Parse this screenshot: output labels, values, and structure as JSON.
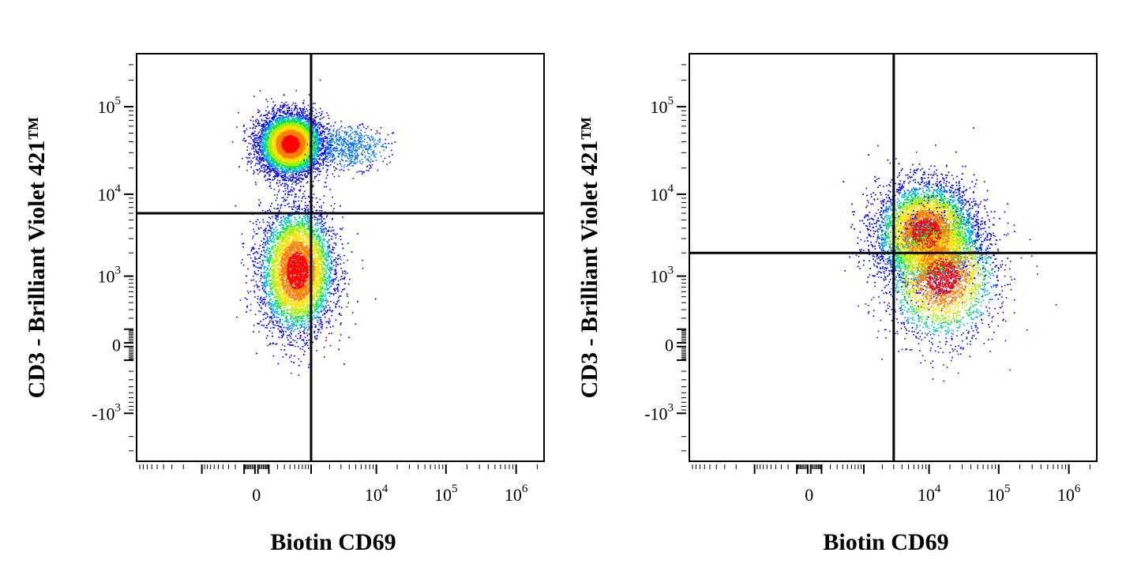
{
  "chart_data": [
    {
      "type": "scatter",
      "subtype": "flow-cytometry-density-dot-plot",
      "title": "",
      "xlabel": "Biotin CD69",
      "ylabel": "CD3 - Brilliant Violet 421™",
      "x_scale": "biexponential",
      "y_scale": "biexponential",
      "x_ticks": [
        {
          "value": 0,
          "label": "0",
          "exp": ""
        },
        {
          "value": 10000,
          "label": "10",
          "exp": "4"
        },
        {
          "value": 100000,
          "label": "10",
          "exp": "5"
        },
        {
          "value": 1000000,
          "label": "10",
          "exp": "6"
        }
      ],
      "y_ticks": [
        {
          "value": 100000,
          "label": "10",
          "exp": "5"
        },
        {
          "value": 10000,
          "label": "10",
          "exp": "4"
        },
        {
          "value": 1000,
          "label": "10",
          "exp": "3"
        },
        {
          "value": 0,
          "label": "0",
          "exp": ""
        },
        {
          "value": -1000,
          "label": "-10",
          "exp": "3"
        }
      ],
      "quadrant_gate": {
        "x": 1000,
        "y": 6000
      },
      "populations": [
        {
          "name": "",
          "x_center": 400,
          "y_center": 38000,
          "count": 7000
        },
        {
          "name": "",
          "x_center": 550,
          "y_center": 1200,
          "count": 7000
        },
        {
          "name": "",
          "x_center": 4000,
          "y_center": 35000,
          "count": 600
        }
      ],
      "grid": false,
      "legend": "none"
    },
    {
      "type": "scatter",
      "subtype": "flow-cytometry-density-dot-plot",
      "title": "",
      "xlabel": "Biotin CD69",
      "ylabel": "CD3 - Brilliant Violet 421™",
      "x_scale": "biexponential",
      "y_scale": "biexponential",
      "x_ticks": [
        {
          "value": 0,
          "label": "0",
          "exp": ""
        },
        {
          "value": 10000,
          "label": "10",
          "exp": "4"
        },
        {
          "value": 100000,
          "label": "10",
          "exp": "5"
        },
        {
          "value": 1000000,
          "label": "10",
          "exp": "6"
        }
      ],
      "y_ticks": [
        {
          "value": 100000,
          "label": "10",
          "exp": "5"
        },
        {
          "value": 10000,
          "label": "10",
          "exp": "4"
        },
        {
          "value": 1000,
          "label": "10",
          "exp": "3"
        },
        {
          "value": 0,
          "label": "0",
          "exp": ""
        },
        {
          "value": -1000,
          "label": "-10",
          "exp": "3"
        }
      ],
      "quadrant_gate": {
        "x": 3000,
        "y": 2000
      },
      "populations": [
        {
          "name": "",
          "x_center": 9000,
          "y_center": 3500,
          "count": 9000
        },
        {
          "name": "",
          "x_center": 15000,
          "y_center": 1000,
          "count": 3000
        }
      ],
      "grid": false,
      "legend": "none"
    }
  ],
  "density_colors": [
    "#0000ff",
    "#0070ff",
    "#00c8c8",
    "#00e050",
    "#a0f000",
    "#ffe000",
    "#ff8000",
    "#ff0000"
  ]
}
